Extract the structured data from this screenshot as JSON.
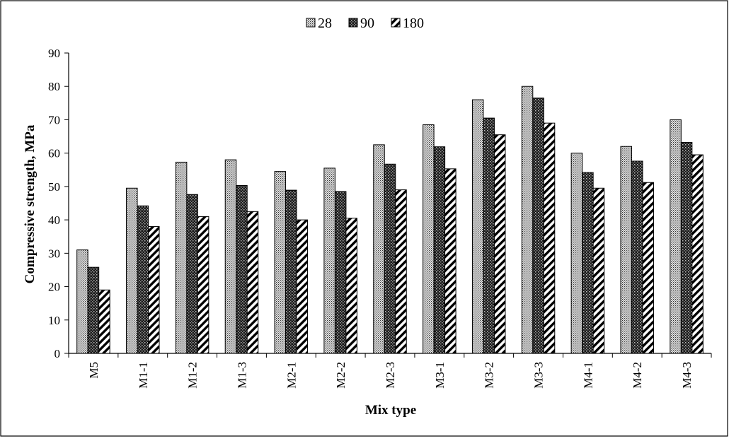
{
  "chart_data": {
    "type": "bar",
    "title": "",
    "xlabel": "Mix type",
    "ylabel": "Compressive strength, MPa",
    "ylim": [
      0,
      90
    ],
    "yticks": [
      0,
      10,
      20,
      30,
      40,
      50,
      60,
      70,
      80,
      90
    ],
    "grid": false,
    "legend_position": "top-center",
    "categories": [
      "M5",
      "M1-1",
      "M1-2",
      "M1-3",
      "M2-1",
      "M2-2",
      "M2-3",
      "M3-1",
      "M3-2",
      "M3-3",
      "M4-1",
      "M4-2",
      "M4-3"
    ],
    "series": [
      {
        "name": "28",
        "pattern": "dotted",
        "values": [
          31,
          49.5,
          57.3,
          58,
          54.5,
          55.5,
          62.5,
          68.5,
          76,
          80,
          60,
          62,
          70
        ]
      },
      {
        "name": "90",
        "pattern": "dark-crosshatch",
        "values": [
          25.8,
          44.2,
          47.6,
          50.3,
          48.9,
          48.5,
          56.7,
          61.9,
          70.5,
          76.5,
          54.2,
          57.6,
          63.2
        ]
      },
      {
        "name": "180",
        "pattern": "diagonal-stripes",
        "values": [
          19,
          38,
          41,
          42.5,
          40,
          40.5,
          49,
          55.3,
          65.5,
          69,
          49.5,
          51.2,
          59.5
        ]
      }
    ]
  }
}
